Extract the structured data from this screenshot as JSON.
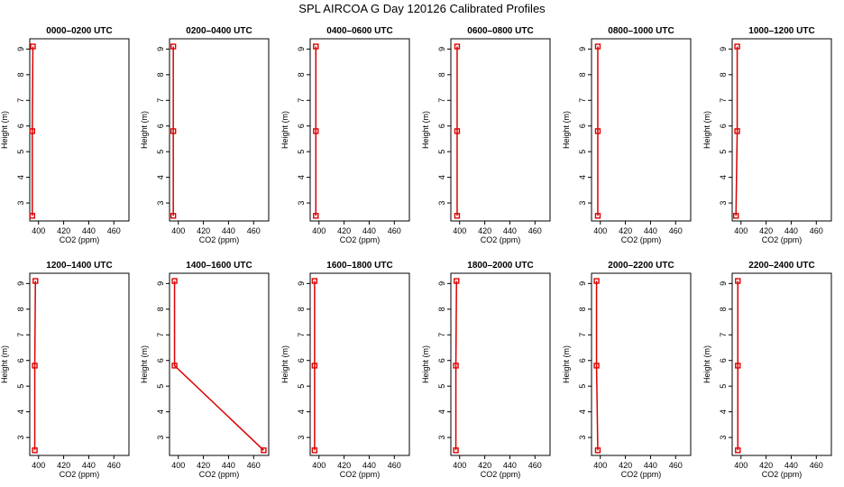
{
  "page": {
    "title": "SPL AIRCOA G  Day 120126  Calibrated Profiles"
  },
  "colors": {
    "profile": "#dd0000",
    "axis": "#000000"
  },
  "chart_data": [
    {
      "type": "line",
      "title": "0000–0200 UTC",
      "xlabel": "CO2 (ppm)",
      "ylabel": "Height (m)",
      "xlim": [
        393,
        472
      ],
      "ylim": [
        2.3,
        9.4
      ],
      "x_ticks": [
        400,
        420,
        440,
        460
      ],
      "y_ticks": [
        3,
        4,
        5,
        6,
        7,
        8,
        9
      ],
      "grid": false,
      "series": [
        {
          "points": [
            {
              "x": 395.5,
              "y": 9.1
            },
            {
              "x": 395,
              "y": 5.8
            },
            {
              "x": 395,
              "y": 2.5
            }
          ]
        }
      ]
    },
    {
      "type": "line",
      "title": "0200–0400 UTC",
      "xlabel": "CO2 (ppm)",
      "ylabel": "Height (m)",
      "xlim": [
        393,
        472
      ],
      "ylim": [
        2.3,
        9.4
      ],
      "x_ticks": [
        400,
        420,
        440,
        460
      ],
      "y_ticks": [
        3,
        4,
        5,
        6,
        7,
        8,
        9
      ],
      "grid": false,
      "series": [
        {
          "points": [
            {
              "x": 396,
              "y": 9.1
            },
            {
              "x": 396,
              "y": 5.8
            },
            {
              "x": 396,
              "y": 2.5
            }
          ]
        }
      ]
    },
    {
      "type": "line",
      "title": "0400–0600 UTC",
      "xlabel": "CO2 (ppm)",
      "ylabel": "Height (m)",
      "xlim": [
        393,
        472
      ],
      "ylim": [
        2.3,
        9.4
      ],
      "x_ticks": [
        400,
        420,
        440,
        460
      ],
      "y_ticks": [
        3,
        4,
        5,
        6,
        7,
        8,
        9
      ],
      "grid": false,
      "series": [
        {
          "points": [
            {
              "x": 397.5,
              "y": 9.1
            },
            {
              "x": 397.5,
              "y": 5.8
            },
            {
              "x": 397.5,
              "y": 2.5
            }
          ]
        }
      ]
    },
    {
      "type": "line",
      "title": "0600–0800 UTC",
      "xlabel": "CO2 (ppm)",
      "ylabel": "Height (m)",
      "xlim": [
        393,
        472
      ],
      "ylim": [
        2.3,
        9.4
      ],
      "x_ticks": [
        400,
        420,
        440,
        460
      ],
      "y_ticks": [
        3,
        4,
        5,
        6,
        7,
        8,
        9
      ],
      "grid": false,
      "series": [
        {
          "points": [
            {
              "x": 398,
              "y": 9.1
            },
            {
              "x": 398,
              "y": 5.8
            },
            {
              "x": 398,
              "y": 2.5
            }
          ]
        }
      ]
    },
    {
      "type": "line",
      "title": "0800–1000 UTC",
      "xlabel": "CO2 (ppm)",
      "ylabel": "Height (m)",
      "xlim": [
        393,
        472
      ],
      "ylim": [
        2.3,
        9.4
      ],
      "x_ticks": [
        400,
        420,
        440,
        460
      ],
      "y_ticks": [
        3,
        4,
        5,
        6,
        7,
        8,
        9
      ],
      "grid": false,
      "series": [
        {
          "points": [
            {
              "x": 398,
              "y": 9.1
            },
            {
              "x": 398,
              "y": 5.8
            },
            {
              "x": 398,
              "y": 2.5
            }
          ]
        }
      ]
    },
    {
      "type": "line",
      "title": "1000–1200 UTC",
      "xlabel": "CO2 (ppm)",
      "ylabel": "Height (m)",
      "xlim": [
        393,
        472
      ],
      "ylim": [
        2.3,
        9.4
      ],
      "x_ticks": [
        400,
        420,
        440,
        460
      ],
      "y_ticks": [
        3,
        4,
        5,
        6,
        7,
        8,
        9
      ],
      "grid": false,
      "series": [
        {
          "points": [
            {
              "x": 397,
              "y": 9.1
            },
            {
              "x": 397,
              "y": 5.8
            },
            {
              "x": 396,
              "y": 2.5
            }
          ]
        }
      ]
    },
    {
      "type": "line",
      "title": "1200–1400 UTC",
      "xlabel": "CO2 (ppm)",
      "ylabel": "Height (m)",
      "xlim": [
        393,
        472
      ],
      "ylim": [
        2.3,
        9.4
      ],
      "x_ticks": [
        400,
        420,
        440,
        460
      ],
      "y_ticks": [
        3,
        4,
        5,
        6,
        7,
        8,
        9
      ],
      "grid": false,
      "series": [
        {
          "points": [
            {
              "x": 397.5,
              "y": 9.1
            },
            {
              "x": 397,
              "y": 5.8
            },
            {
              "x": 397,
              "y": 2.5
            }
          ]
        }
      ]
    },
    {
      "type": "line",
      "title": "1400–1600 UTC",
      "xlabel": "CO2 (ppm)",
      "ylabel": "Height (m)",
      "xlim": [
        393,
        472
      ],
      "ylim": [
        2.3,
        9.4
      ],
      "x_ticks": [
        400,
        420,
        440,
        460
      ],
      "y_ticks": [
        3,
        4,
        5,
        6,
        7,
        8,
        9
      ],
      "grid": false,
      "series": [
        {
          "points": [
            {
              "x": 397,
              "y": 9.1
            },
            {
              "x": 397,
              "y": 5.8
            },
            {
              "x": 468,
              "y": 2.5
            }
          ]
        }
      ]
    },
    {
      "type": "line",
      "title": "1600–1800 UTC",
      "xlabel": "CO2 (ppm)",
      "ylabel": "Height (m)",
      "xlim": [
        393,
        472
      ],
      "ylim": [
        2.3,
        9.4
      ],
      "x_ticks": [
        400,
        420,
        440,
        460
      ],
      "y_ticks": [
        3,
        4,
        5,
        6,
        7,
        8,
        9
      ],
      "grid": false,
      "series": [
        {
          "points": [
            {
              "x": 396.5,
              "y": 9.1
            },
            {
              "x": 396.5,
              "y": 5.8
            },
            {
              "x": 396.5,
              "y": 2.5
            }
          ]
        }
      ]
    },
    {
      "type": "line",
      "title": "1800–2000 UTC",
      "xlabel": "CO2 (ppm)",
      "ylabel": "Height (m)",
      "xlim": [
        393,
        472
      ],
      "ylim": [
        2.3,
        9.4
      ],
      "x_ticks": [
        400,
        420,
        440,
        460
      ],
      "y_ticks": [
        3,
        4,
        5,
        6,
        7,
        8,
        9
      ],
      "grid": false,
      "series": [
        {
          "points": [
            {
              "x": 397.5,
              "y": 9.1
            },
            {
              "x": 397,
              "y": 5.8
            },
            {
              "x": 397,
              "y": 2.5
            }
          ]
        }
      ]
    },
    {
      "type": "line",
      "title": "2000–2200 UTC",
      "xlabel": "CO2 (ppm)",
      "ylabel": "Height (m)",
      "xlim": [
        393,
        472
      ],
      "ylim": [
        2.3,
        9.4
      ],
      "x_ticks": [
        400,
        420,
        440,
        460
      ],
      "y_ticks": [
        3,
        4,
        5,
        6,
        7,
        8,
        9
      ],
      "grid": false,
      "series": [
        {
          "points": [
            {
              "x": 397,
              "y": 9.1
            },
            {
              "x": 397,
              "y": 5.8
            },
            {
              "x": 398,
              "y": 2.5
            }
          ]
        }
      ]
    },
    {
      "type": "line",
      "title": "2200–2400 UTC",
      "xlabel": "CO2 (ppm)",
      "ylabel": "Height (m)",
      "xlim": [
        393,
        472
      ],
      "ylim": [
        2.3,
        9.4
      ],
      "x_ticks": [
        400,
        420,
        440,
        460
      ],
      "y_ticks": [
        3,
        4,
        5,
        6,
        7,
        8,
        9
      ],
      "grid": false,
      "series": [
        {
          "points": [
            {
              "x": 397.5,
              "y": 9.1
            },
            {
              "x": 397.5,
              "y": 5.8
            },
            {
              "x": 397.5,
              "y": 2.5
            }
          ]
        }
      ]
    }
  ]
}
